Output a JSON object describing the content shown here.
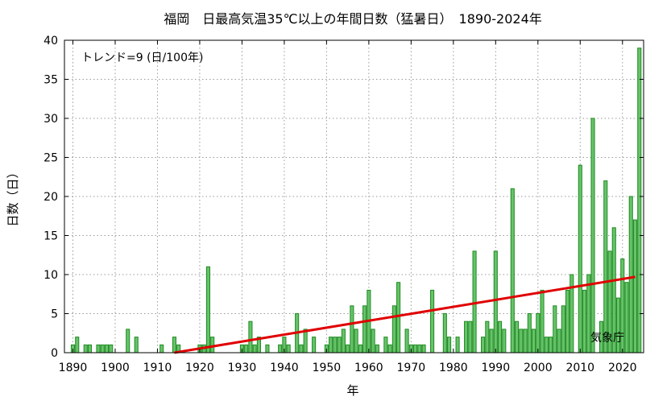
{
  "chart_data": {
    "type": "bar",
    "title": "福岡　日最高気温35℃以上の年間日数（猛暑日）　1890-2024年",
    "xlabel": "年",
    "ylabel": "日数（日）",
    "xlim": [
      1888,
      2025
    ],
    "ylim": [
      0,
      40
    ],
    "xticks": [
      1890,
      1900,
      1910,
      1920,
      1930,
      1940,
      1950,
      1960,
      1970,
      1980,
      1990,
      2000,
      2010,
      2020
    ],
    "yticks": [
      0,
      5,
      10,
      15,
      20,
      25,
      30,
      35,
      40
    ],
    "grid": true,
    "colors": {
      "bar_fill": "#67c36a",
      "bar_edge": "#1f8a22",
      "trend": "#e00000"
    },
    "annotation": "トレンド=9 (日/100年)",
    "credit": "気象庁",
    "x": [
      1890,
      1891,
      1892,
      1893,
      1894,
      1895,
      1896,
      1897,
      1898,
      1899,
      1900,
      1901,
      1902,
      1903,
      1904,
      1905,
      1906,
      1907,
      1908,
      1909,
      1910,
      1911,
      1912,
      1913,
      1914,
      1915,
      1916,
      1917,
      1918,
      1919,
      1920,
      1921,
      1922,
      1923,
      1924,
      1925,
      1926,
      1927,
      1928,
      1929,
      1930,
      1931,
      1932,
      1933,
      1934,
      1935,
      1936,
      1937,
      1938,
      1939,
      1940,
      1941,
      1942,
      1943,
      1944,
      1945,
      1946,
      1947,
      1948,
      1949,
      1950,
      1951,
      1952,
      1953,
      1954,
      1955,
      1956,
      1957,
      1958,
      1959,
      1960,
      1961,
      1962,
      1963,
      1964,
      1965,
      1966,
      1967,
      1968,
      1969,
      1970,
      1971,
      1972,
      1973,
      1974,
      1975,
      1976,
      1977,
      1978,
      1979,
      1980,
      1981,
      1982,
      1983,
      1984,
      1985,
      1986,
      1987,
      1988,
      1989,
      1990,
      1991,
      1992,
      1993,
      1994,
      1995,
      1996,
      1997,
      1998,
      1999,
      2000,
      2001,
      2002,
      2003,
      2004,
      2005,
      2006,
      2007,
      2008,
      2009,
      2010,
      2011,
      2012,
      2013,
      2014,
      2015,
      2016,
      2017,
      2018,
      2019,
      2020,
      2021,
      2022,
      2023,
      2024
    ],
    "values": [
      1,
      2,
      0,
      1,
      1,
      0,
      1,
      1,
      1,
      1,
      0,
      0,
      0,
      3,
      0,
      2,
      0,
      0,
      0,
      0,
      0,
      1,
      0,
      0,
      2,
      1,
      0,
      0,
      0,
      0,
      1,
      1,
      11,
      2,
      0,
      0,
      0,
      0,
      0,
      0,
      1,
      1,
      4,
      1,
      2,
      0,
      1,
      0,
      0,
      1,
      2,
      1,
      0,
      5,
      1,
      3,
      0,
      2,
      0,
      0,
      1,
      2,
      2,
      2,
      3,
      1,
      6,
      3,
      1,
      6,
      8,
      3,
      1,
      0,
      2,
      1,
      6,
      9,
      0,
      3,
      1,
      1,
      1,
      1,
      0,
      8,
      0,
      0,
      5,
      2,
      0,
      2,
      0,
      4,
      4,
      13,
      0,
      2,
      4,
      3,
      13,
      4,
      3,
      0,
      21,
      4,
      3,
      3,
      5,
      3,
      5,
      8,
      2,
      2,
      6,
      3,
      6,
      8,
      10,
      0,
      24,
      8,
      10,
      30,
      0,
      4,
      22,
      13,
      16,
      7,
      12,
      9,
      20,
      17,
      39
    ],
    "trend": {
      "slope_per_100y": 9,
      "x": [
        1914,
        2023
      ],
      "y": [
        0.0,
        9.7
      ]
    }
  }
}
